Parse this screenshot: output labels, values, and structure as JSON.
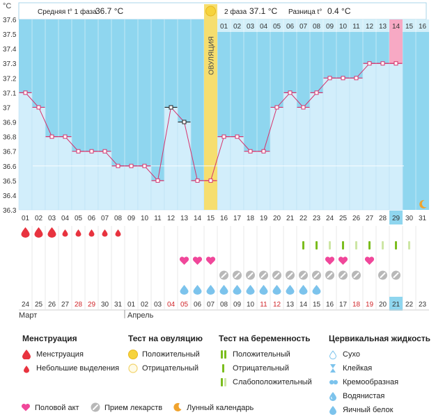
{
  "header": {
    "phase1_label": "Средняя t° 1 фаза",
    "phase1_value": "36.7 °C",
    "phase2_label": "2 фаза",
    "phase2_value": "37.1 °C",
    "diff_label": "Разница t°",
    "diff_value": "0.4 °C",
    "ovulation_label": "ОВУЛЯЦИЯ",
    "unit": "°C"
  },
  "chart_data": {
    "type": "line",
    "x": [
      "01",
      "02",
      "03",
      "04",
      "05",
      "06",
      "07",
      "08",
      "09",
      "10",
      "11",
      "12",
      "13",
      "14",
      "15",
      "16",
      "17",
      "18",
      "19",
      "20",
      "21",
      "22",
      "23",
      "24",
      "25",
      "26",
      "27",
      "28",
      "29",
      "30",
      "31"
    ],
    "y_ticks": [
      "37.6",
      "37.5",
      "37.4",
      "37.3",
      "37.2",
      "37.1",
      "37",
      "36.9",
      "36.8",
      "36.7",
      "36.6",
      "36.5",
      "36.4",
      "36.3"
    ],
    "ylim": [
      36.3,
      37.6
    ],
    "series": [
      {
        "values": [
          37.1,
          37.0,
          36.8,
          36.8,
          36.7,
          36.7,
          36.7,
          36.6,
          36.6,
          36.6,
          36.5,
          37.0,
          36.9,
          36.5,
          36.5,
          36.8,
          36.8,
          36.7,
          36.7,
          37.0,
          37.1,
          37.0,
          37.1,
          37.2,
          37.2,
          37.2,
          37.3,
          37.3,
          37.3,
          null,
          null
        ]
      }
    ],
    "ovulation_day": 15,
    "highlight_day": 29,
    "second_phase_numbers": [
      "01",
      "02",
      "03",
      "04",
      "05",
      "06",
      "07",
      "08",
      "09",
      "10",
      "11",
      "12",
      "13",
      "14",
      "15",
      "16"
    ],
    "highlight_phase_number": "14",
    "coverline": 36.6,
    "dates": [
      "24",
      "25",
      "26",
      "27",
      "28",
      "29",
      "30",
      "31",
      "01",
      "02",
      "03",
      "04",
      "05",
      "06",
      "07",
      "08",
      "09",
      "10",
      "11",
      "12",
      "13",
      "14",
      "15",
      "16",
      "17",
      "18",
      "19",
      "20",
      "21",
      "22",
      "23"
    ],
    "red_dates": [
      "28",
      "29",
      "04",
      "05",
      "11",
      "12",
      "18",
      "19"
    ],
    "months": [
      "Март",
      "Апрель"
    ],
    "menstruation": [
      "big",
      "big",
      "big",
      "small",
      "small",
      "small",
      "small",
      "small"
    ],
    "cervical_days": [
      [
        22,
        "bright"
      ],
      [
        23,
        "bright"
      ],
      [
        24,
        "light"
      ],
      [
        25,
        "bright"
      ],
      [
        26,
        "light"
      ],
      [
        27,
        "bright"
      ],
      [
        28,
        "light"
      ],
      [
        29,
        "bright"
      ],
      [
        30,
        "light"
      ]
    ],
    "intercourse_days": [
      13,
      14,
      15,
      24,
      25,
      27
    ],
    "medication_days": [
      16,
      17,
      18,
      19,
      20,
      21,
      22,
      23,
      24,
      25,
      26,
      28,
      29
    ],
    "pregnancy_test_days": [
      13,
      14,
      15,
      16,
      17,
      18,
      19,
      20,
      21,
      22,
      23
    ],
    "moon_day": 31
  },
  "legend": {
    "menstruation": {
      "title": "Менструация",
      "items": [
        "Менструация",
        "Небольшие выделения"
      ]
    },
    "ovulation_test": {
      "title": "Тест на овуляцию",
      "items": [
        "Положительный",
        "Отрицательный"
      ]
    },
    "pregnancy_test": {
      "title": "Тест на беременность",
      "items": [
        "Положительный",
        "Отрицательный",
        "Слабоположительный"
      ]
    },
    "cervical": {
      "title": "Цервикальная жидкость",
      "items": [
        "Сухо",
        "Клейкая",
        "Кремообразная",
        "Водянистая",
        "Яичный белок"
      ]
    },
    "bottom": [
      "Половой акт",
      "Прием лекарств",
      "Лунный календарь"
    ]
  },
  "colors": {
    "plot_bg": "#8fd6ef",
    "area_fill": "#d2eefb",
    "line": "#d6336c",
    "ovulation_bar": "#f6de6f",
    "highlight": "#f7a9c4",
    "drop_red": "#e8333f",
    "heart": "#f0479a",
    "pill_grey": "#b8b8b8",
    "drop_blue": "#7cc3ec",
    "cervical_green": "#7bbd1e",
    "moon": "#f0a32e"
  }
}
